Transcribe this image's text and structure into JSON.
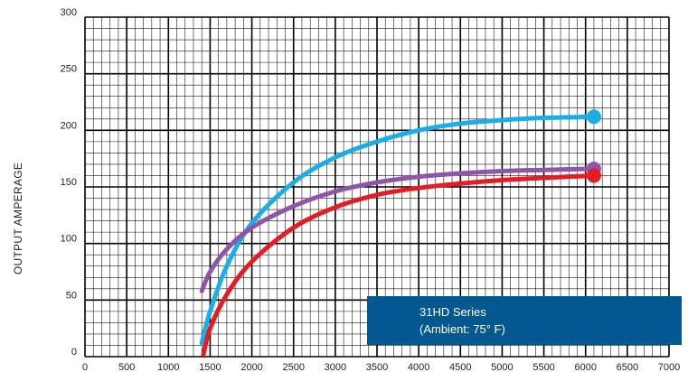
{
  "chart_data": {
    "type": "line",
    "title": "",
    "xlabel": "",
    "ylabel": "OUTPUT AMPERAGE",
    "xlim": [
      0,
      7000
    ],
    "ylim": [
      0,
      300
    ],
    "x_ticks": [
      "0",
      "500",
      "1000",
      "1500",
      "2000",
      "2500",
      "3000",
      "3500",
      "4000",
      "4500",
      "5000",
      "5500",
      "6000",
      "6500",
      "7000"
    ],
    "y_ticks": [
      "0",
      "50",
      "100",
      "150",
      "200",
      "250",
      "300"
    ],
    "grid": true,
    "annotation": {
      "line1": "31HD Series",
      "line2": "(Ambient: 75° F)",
      "color": "#02588f"
    },
    "series": [
      {
        "color": "#1aaee8",
        "x": [
          1400,
          1500,
          1700,
          2000,
          2500,
          3000,
          3500,
          4000,
          4500,
          5000,
          5500,
          6100
        ],
        "y": [
          12,
          40,
          80,
          118,
          154,
          176,
          190,
          200,
          206,
          209,
          211,
          212
        ]
      },
      {
        "color": "#8f55a8",
        "x": [
          1400,
          1500,
          1700,
          2000,
          2500,
          3000,
          3500,
          4000,
          4500,
          5000,
          5500,
          6100
        ],
        "y": [
          58,
          75,
          95,
          114,
          133,
          146,
          154,
          159,
          162,
          164,
          165,
          166
        ]
      },
      {
        "color": "#e51c24",
        "x": [
          1420,
          1500,
          1700,
          2000,
          2500,
          3000,
          3500,
          4000,
          4500,
          5000,
          5500,
          6100
        ],
        "y": [
          2,
          25,
          55,
          84,
          114,
          132,
          143,
          149,
          153,
          156,
          158,
          160
        ]
      }
    ]
  }
}
